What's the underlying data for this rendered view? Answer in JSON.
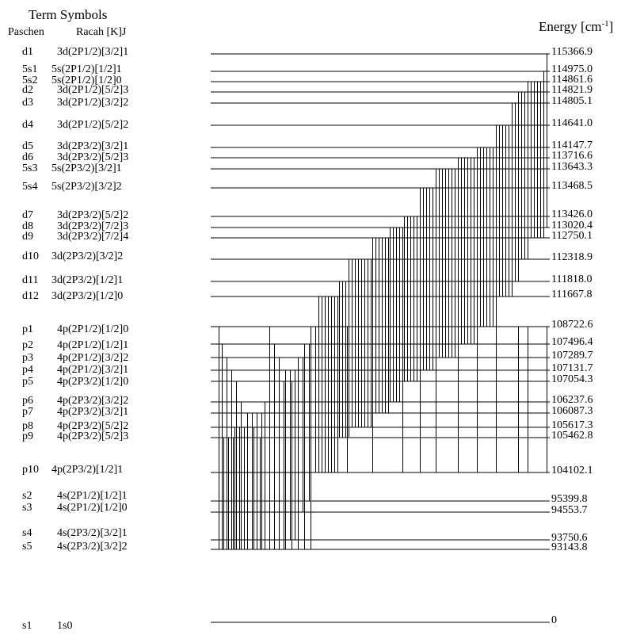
{
  "header": {
    "title": "Term Symbols",
    "paschen_label": "Paschen",
    "racah_label": "Racah [K]J",
    "energy_label_main": "Energy [cm",
    "energy_label_sup": "-1",
    "energy_label_close": "]"
  },
  "levels": [
    {
      "paschen": "d1",
      "racah": "3d(2P1/2)[3/2]1",
      "energy": "115366.9"
    },
    {
      "paschen": "5s1",
      "racah": "5s(2P1/2)[1/2]1",
      "energy": "114975.0"
    },
    {
      "paschen": "5s2",
      "racah": "5s(2P1/2)[1/2]0",
      "energy": "114861.6"
    },
    {
      "paschen": "d2",
      "racah": "3d(2P1/2)[5/2]3",
      "energy": "114821.9"
    },
    {
      "paschen": "d3",
      "racah": "3d(2P1/2)[3/2]2",
      "energy": "114805.1"
    },
    {
      "paschen": "d4",
      "racah": "3d(2P1/2)[5/2]2",
      "energy": "114641.0"
    },
    {
      "paschen": "d5",
      "racah": "3d(2P3/2)[3/2]1",
      "energy": "114147.7"
    },
    {
      "paschen": "d6",
      "racah": "3d(2P3/2)[5/2]3",
      "energy": "113716.6"
    },
    {
      "paschen": "5s3",
      "racah": "5s(2P3/2)[3/2]1",
      "energy": "113643.3"
    },
    {
      "paschen": "5s4",
      "racah": "5s(2P3/2)[3/2]2",
      "energy": "113468.5"
    },
    {
      "paschen": "d7",
      "racah": "3d(2P3/2)[5/2]2",
      "energy": "113426.0"
    },
    {
      "paschen": "d8",
      "racah": "3d(2P3/2)[7/2]3",
      "energy": "113020.4"
    },
    {
      "paschen": "d9",
      "racah": "3d(2P3/2)[7/2]4",
      "energy": "112750.1"
    },
    {
      "paschen": "d10",
      "racah": "3d(2P3/2)[3/2]2",
      "energy": "112318.9"
    },
    {
      "paschen": "d11",
      "racah": "3d(2P3/2)[1/2]1",
      "energy": "111818.0"
    },
    {
      "paschen": "d12",
      "racah": "3d(2P3/2)[1/2]0",
      "energy": "111667.8"
    },
    {
      "paschen": "p1",
      "racah": "4p(2P1/2)[1/2]0",
      "energy": "108722.6"
    },
    {
      "paschen": "p2",
      "racah": "4p(2P1/2)[1/2]1",
      "energy": "107496.4"
    },
    {
      "paschen": "p3",
      "racah": "4p(2P1/2)[3/2]2",
      "energy": "107289.7"
    },
    {
      "paschen": "p4",
      "racah": "4p(2P1/2)[3/2]1",
      "energy": "107131.7"
    },
    {
      "paschen": "p5",
      "racah": "4p(2P3/2)[1/2]0",
      "energy": "107054.3"
    },
    {
      "paschen": "p6",
      "racah": "4p(2P3/2)[3/2]2",
      "energy": "106237.6"
    },
    {
      "paschen": "p7",
      "racah": "4p(2P3/2)[3/2]1",
      "energy": "106087.3"
    },
    {
      "paschen": "p8",
      "racah": "4p(2P3/2)[5/2]2",
      "energy": "105617.3"
    },
    {
      "paschen": "p9",
      "racah": "4p(2P3/2)[5/2]3",
      "energy": "105462.8"
    },
    {
      "paschen": "p10",
      "racah": "4p(2P3/2)[1/2]1",
      "energy": "104102.1"
    },
    {
      "paschen": "s2",
      "racah": "4s(2P1/2)[1/2]1",
      "energy": "95399.8"
    },
    {
      "paschen": "s3",
      "racah": "4s(2P1/2)[1/2]0",
      "energy": "94553.7"
    },
    {
      "paschen": "s4",
      "racah": "4s(2P3/2)[3/2]1",
      "energy": "93750.6"
    },
    {
      "paschen": "s5",
      "racah": "4s(2P3/2)[3/2]2",
      "energy": "93143.8"
    },
    {
      "paschen": "s1",
      "racah": "1s0",
      "energy": "0"
    }
  ]
}
